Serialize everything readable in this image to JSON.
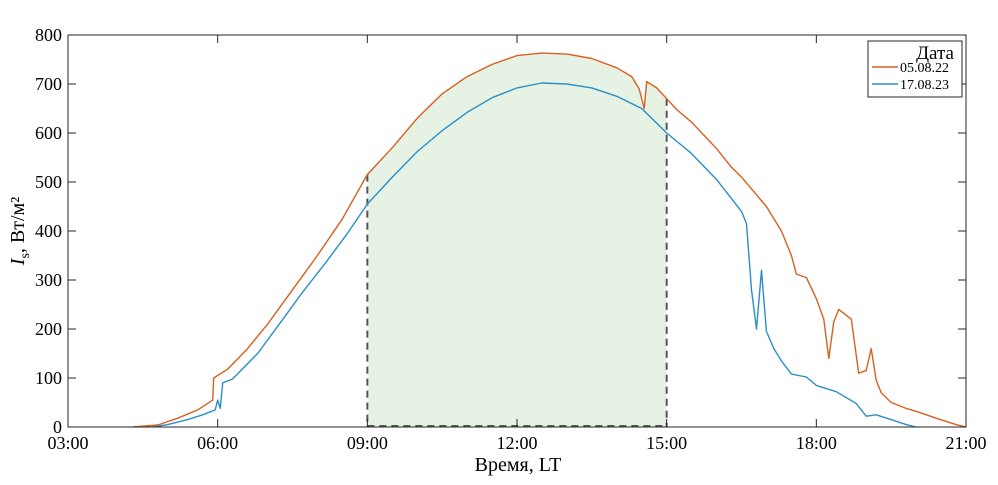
{
  "chart_data": {
    "type": "line",
    "xlabel": "Время, LT",
    "ylabel_main": "I",
    "ylabel_sub": "s",
    "ylabel_unit": ", Вт/м²",
    "x_unit": "hours LT",
    "xlim": [
      3,
      21
    ],
    "ylim": [
      0,
      800
    ],
    "xticks": [
      3,
      6,
      9,
      12,
      15,
      18,
      21
    ],
    "xtick_labels": [
      "03:00",
      "06:00",
      "09:00",
      "12:00",
      "15:00",
      "18:00",
      "21:00"
    ],
    "yticks": [
      0,
      100,
      200,
      300,
      400,
      500,
      600,
      700,
      800
    ],
    "ytick_labels": [
      "0",
      "100",
      "200",
      "300",
      "400",
      "500",
      "600",
      "700",
      "800"
    ],
    "grid": false,
    "legend": {
      "title": "Дата",
      "placement": "top-right"
    },
    "shaded_region": {
      "x_start": 9,
      "x_end": 15,
      "color": "#e6f2e4",
      "boundary_style": "dashed"
    },
    "series": [
      {
        "name": "05.08.22",
        "color": "#d95f1f",
        "points": [
          [
            4.3,
            0
          ],
          [
            4.8,
            4
          ],
          [
            5.2,
            18
          ],
          [
            5.6,
            35
          ],
          [
            5.9,
            55
          ],
          [
            5.92,
            100
          ],
          [
            6.2,
            118
          ],
          [
            6.6,
            160
          ],
          [
            7.0,
            210
          ],
          [
            7.5,
            280
          ],
          [
            8.0,
            350
          ],
          [
            8.5,
            425
          ],
          [
            9.0,
            515
          ],
          [
            9.5,
            570
          ],
          [
            10.0,
            630
          ],
          [
            10.5,
            680
          ],
          [
            11.0,
            715
          ],
          [
            11.5,
            740
          ],
          [
            12.0,
            758
          ],
          [
            12.5,
            763
          ],
          [
            13.0,
            761
          ],
          [
            13.5,
            752
          ],
          [
            14.0,
            733
          ],
          [
            14.3,
            715
          ],
          [
            14.45,
            690
          ],
          [
            14.55,
            650
          ],
          [
            14.6,
            705
          ],
          [
            14.8,
            692
          ],
          [
            15.0,
            670
          ],
          [
            15.2,
            648
          ],
          [
            15.5,
            622
          ],
          [
            16.0,
            568
          ],
          [
            16.3,
            530
          ],
          [
            16.5,
            510
          ],
          [
            17.0,
            450
          ],
          [
            17.3,
            400
          ],
          [
            17.5,
            350
          ],
          [
            17.6,
            312
          ],
          [
            17.8,
            305
          ],
          [
            18.0,
            262
          ],
          [
            18.15,
            220
          ],
          [
            18.25,
            140
          ],
          [
            18.35,
            215
          ],
          [
            18.45,
            240
          ],
          [
            18.7,
            220
          ],
          [
            18.85,
            110
          ],
          [
            19.0,
            115
          ],
          [
            19.1,
            160
          ],
          [
            19.2,
            95
          ],
          [
            19.3,
            70
          ],
          [
            19.5,
            50
          ],
          [
            19.8,
            38
          ],
          [
            20.0,
            32
          ],
          [
            20.4,
            18
          ],
          [
            20.8,
            5
          ],
          [
            21.0,
            0
          ]
        ]
      },
      {
        "name": "17.08.23",
        "color": "#2a8fc6",
        "points": [
          [
            4.7,
            0
          ],
          [
            5.0,
            5
          ],
          [
            5.4,
            15
          ],
          [
            5.7,
            25
          ],
          [
            5.95,
            35
          ],
          [
            6.0,
            55
          ],
          [
            6.05,
            38
          ],
          [
            6.1,
            90
          ],
          [
            6.3,
            98
          ],
          [
            6.8,
            150
          ],
          [
            7.2,
            205
          ],
          [
            7.7,
            275
          ],
          [
            8.2,
            340
          ],
          [
            8.6,
            395
          ],
          [
            9.0,
            455
          ],
          [
            9.5,
            510
          ],
          [
            10.0,
            562
          ],
          [
            10.5,
            605
          ],
          [
            11.0,
            642
          ],
          [
            11.5,
            672
          ],
          [
            12.0,
            692
          ],
          [
            12.5,
            702
          ],
          [
            13.0,
            700
          ],
          [
            13.5,
            692
          ],
          [
            14.0,
            675
          ],
          [
            14.5,
            650
          ],
          [
            15.0,
            600
          ],
          [
            15.5,
            558
          ],
          [
            16.0,
            505
          ],
          [
            16.5,
            440
          ],
          [
            16.6,
            415
          ],
          [
            16.7,
            280
          ],
          [
            16.8,
            200
          ],
          [
            16.9,
            320
          ],
          [
            17.0,
            195
          ],
          [
            17.15,
            160
          ],
          [
            17.3,
            135
          ],
          [
            17.5,
            108
          ],
          [
            17.8,
            102
          ],
          [
            18.0,
            85
          ],
          [
            18.4,
            72
          ],
          [
            18.8,
            48
          ],
          [
            19.0,
            22
          ],
          [
            19.2,
            25
          ],
          [
            19.5,
            15
          ],
          [
            19.8,
            5
          ],
          [
            20.0,
            0
          ]
        ]
      }
    ]
  }
}
